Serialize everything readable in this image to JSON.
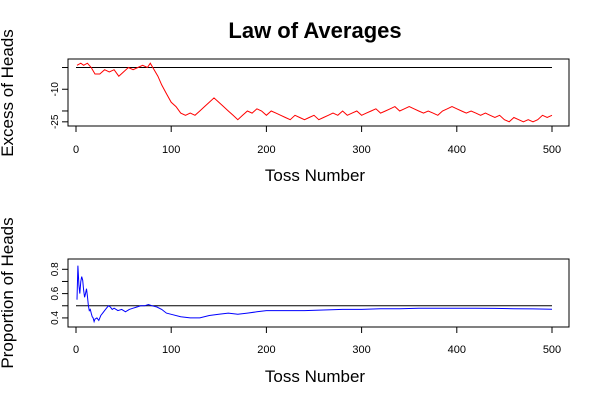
{
  "figure": {
    "title": "Law of Averages"
  },
  "chart_data": [
    {
      "type": "line",
      "title": "",
      "xlabel": "Toss Number",
      "ylabel": "Excess of Heads",
      "xlim": [
        0,
        500
      ],
      "ylim": [
        -26,
        3
      ],
      "x_ticks": [
        0,
        100,
        200,
        300,
        400,
        500
      ],
      "y_ticks": [
        -25,
        -20,
        -10,
        0
      ],
      "x_tick_labels": [
        "0",
        "100",
        "200",
        "300",
        "400",
        "500"
      ],
      "y_tick_labels": [
        "-25",
        "",
        "-10",
        ""
      ],
      "reference_line": 0,
      "reference_color": "#000000",
      "series": [
        {
          "color": "#ff0000",
          "x": [
            1,
            5,
            8,
            12,
            16,
            20,
            25,
            30,
            35,
            40,
            45,
            50,
            55,
            60,
            65,
            70,
            75,
            78,
            82,
            86,
            90,
            95,
            100,
            105,
            110,
            115,
            120,
            125,
            130,
            135,
            140,
            145,
            150,
            155,
            160,
            165,
            170,
            175,
            180,
            185,
            190,
            195,
            200,
            205,
            210,
            215,
            220,
            225,
            230,
            235,
            240,
            245,
            250,
            255,
            260,
            265,
            270,
            275,
            280,
            285,
            290,
            295,
            300,
            305,
            310,
            315,
            320,
            325,
            330,
            335,
            340,
            345,
            350,
            355,
            360,
            365,
            370,
            375,
            380,
            385,
            390,
            395,
            400,
            405,
            410,
            415,
            420,
            425,
            430,
            435,
            440,
            445,
            450,
            455,
            460,
            465,
            470,
            475,
            480,
            485,
            490,
            495,
            500
          ],
          "y": [
            1,
            2,
            1,
            2,
            0,
            -3,
            -3,
            -1,
            -2,
            -1,
            -4,
            -2,
            0,
            -1,
            0,
            1,
            0,
            2,
            -1,
            -4,
            -8,
            -12,
            -16,
            -18,
            -21,
            -22,
            -21,
            -22,
            -20,
            -18,
            -16,
            -14,
            -16,
            -18,
            -20,
            -22,
            -24,
            -22,
            -20,
            -21,
            -19,
            -20,
            -22,
            -20,
            -21,
            -22,
            -23,
            -24,
            -22,
            -23,
            -24,
            -23,
            -22,
            -24,
            -23,
            -22,
            -21,
            -22,
            -20,
            -22,
            -21,
            -20,
            -22,
            -21,
            -20,
            -19,
            -21,
            -20,
            -19,
            -18,
            -20,
            -19,
            -18,
            -19,
            -20,
            -21,
            -20,
            -21,
            -22,
            -20,
            -19,
            -18,
            -19,
            -20,
            -21,
            -20,
            -21,
            -22,
            -21,
            -22,
            -23,
            -22,
            -24,
            -25,
            -23,
            -24,
            -25,
            -24,
            -25,
            -24,
            -22,
            -23,
            -22
          ]
        }
      ]
    },
    {
      "type": "line",
      "title": "",
      "xlabel": "Toss Number",
      "ylabel": "Proportion of Heads",
      "xlim": [
        0,
        500
      ],
      "ylim": [
        0.35,
        0.86
      ],
      "x_ticks": [
        0,
        100,
        200,
        300,
        400,
        500
      ],
      "y_ticks": [
        0.4,
        0.5,
        0.6,
        0.7,
        0.8
      ],
      "x_tick_labels": [
        "0",
        "100",
        "200",
        "300",
        "400",
        "500"
      ],
      "y_tick_labels": [
        "0.4",
        "",
        "0.6",
        "",
        "0.8"
      ],
      "reference_line": 0.5,
      "reference_color": "#000000",
      "series": [
        {
          "color": "#0000ff",
          "x": [
            1,
            2,
            3,
            4,
            5,
            6,
            7,
            8,
            9,
            10,
            11,
            12,
            13,
            14,
            15,
            16,
            17,
            18,
            19,
            20,
            22,
            24,
            26,
            28,
            30,
            32,
            34,
            36,
            38,
            40,
            44,
            48,
            52,
            56,
            60,
            64,
            68,
            72,
            76,
            80,
            85,
            90,
            95,
            100,
            110,
            120,
            130,
            140,
            150,
            160,
            170,
            180,
            190,
            200,
            220,
            240,
            260,
            280,
            300,
            320,
            340,
            360,
            380,
            400,
            420,
            440,
            460,
            480,
            500
          ],
          "y": [
            0.55,
            0.83,
            0.67,
            0.6,
            0.7,
            0.74,
            0.71,
            0.63,
            0.57,
            0.6,
            0.64,
            0.58,
            0.5,
            0.46,
            0.47,
            0.44,
            0.41,
            0.4,
            0.37,
            0.39,
            0.4,
            0.38,
            0.42,
            0.44,
            0.46,
            0.48,
            0.5,
            0.49,
            0.47,
            0.48,
            0.46,
            0.47,
            0.45,
            0.47,
            0.48,
            0.49,
            0.5,
            0.5,
            0.51,
            0.5,
            0.49,
            0.47,
            0.44,
            0.43,
            0.41,
            0.4,
            0.4,
            0.42,
            0.43,
            0.44,
            0.43,
            0.44,
            0.45,
            0.46,
            0.46,
            0.46,
            0.465,
            0.47,
            0.47,
            0.475,
            0.475,
            0.48,
            0.48,
            0.48,
            0.48,
            0.478,
            0.476,
            0.474,
            0.472
          ]
        }
      ]
    }
  ]
}
